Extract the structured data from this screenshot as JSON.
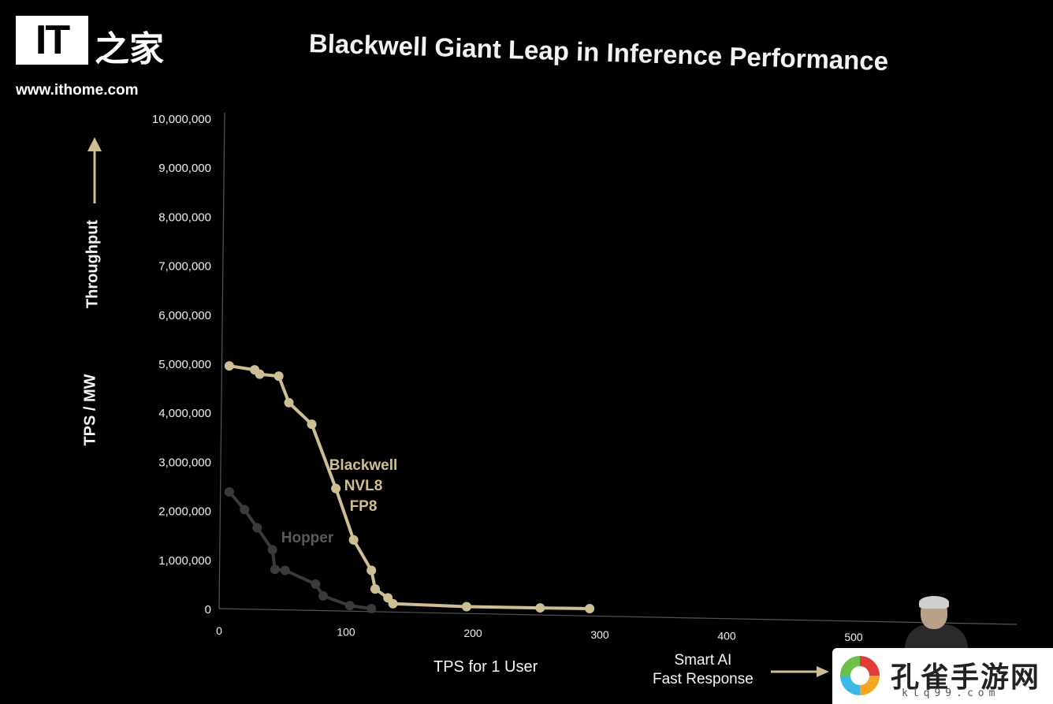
{
  "watermark": {
    "logo_text": "IT",
    "logo_cn": "之家",
    "url": "www.ithome.com",
    "badge_name": "孔雀手游网",
    "badge_url": "klq99.com"
  },
  "chart_data": {
    "type": "line",
    "title": "Blackwell Giant Leap in Inference Performance",
    "xlabel": "TPS for 1 User",
    "ylabel": "TPS / MW",
    "y_arrow_label": "Throughput",
    "x_arrow_label_line1": "Smart AI",
    "x_arrow_label_line2": "Fast Response",
    "xlim": [
      0,
      600
    ],
    "ylim": [
      0,
      10000000
    ],
    "x_ticks": [
      0,
      100,
      200,
      300,
      400,
      500
    ],
    "x_tick_labels": [
      "0",
      "100",
      "200",
      "300",
      "400",
      "500"
    ],
    "y_ticks": [
      0,
      1000000,
      2000000,
      3000000,
      4000000,
      5000000,
      6000000,
      7000000,
      8000000,
      9000000,
      10000000
    ],
    "y_tick_labels": [
      "0",
      "1,000,000",
      "2,000,000",
      "3,000,000",
      "4,000,000",
      "5,000,000",
      "6,000,000",
      "7,000,000",
      "8,000,000",
      "9,000,000",
      "10,000,000"
    ],
    "grid": false,
    "series": [
      {
        "name": "Blackwell",
        "label_lines": [
          "Blackwell",
          "NVL8",
          "FP8"
        ],
        "color": "#cdbf93",
        "x": [
          8,
          28,
          32,
          47,
          55,
          73,
          92,
          106,
          120,
          123,
          133,
          137,
          195,
          253,
          292
        ],
        "y": [
          4950000,
          4870000,
          4780000,
          4740000,
          4200000,
          3760000,
          2450000,
          1400000,
          780000,
          400000,
          220000,
          100000,
          40000,
          15000,
          0
        ]
      },
      {
        "name": "Hopper",
        "color": "#3a3a3a",
        "x": [
          8,
          20,
          30,
          42,
          44,
          52,
          76,
          82,
          103,
          120
        ],
        "y": [
          2380000,
          2020000,
          1650000,
          1200000,
          800000,
          780000,
          500000,
          260000,
          60000,
          0
        ]
      }
    ]
  }
}
